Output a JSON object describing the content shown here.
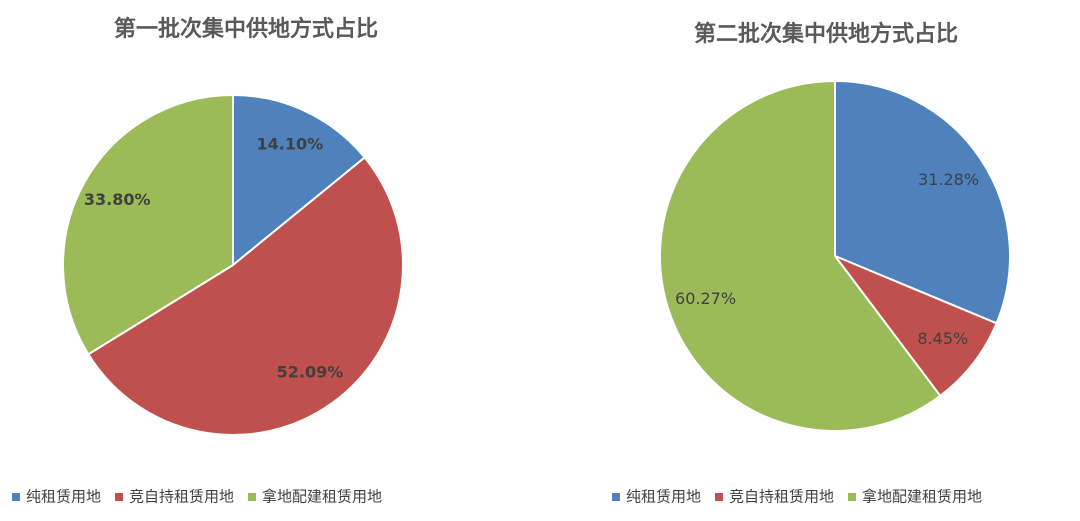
{
  "chart_data": [
    {
      "type": "pie",
      "title": "第一批次集中供地方式占比",
      "categories": [
        "纯租赁用地",
        "竞自持租赁用地",
        "拿地配建租赁用地"
      ],
      "values": [
        14.1,
        52.09,
        33.8
      ],
      "value_labels": [
        "14.10%",
        "52.09%",
        "33.80%"
      ],
      "colors": [
        "#4f81bd",
        "#c0504d",
        "#9bbb59"
      ]
    },
    {
      "type": "pie",
      "title": "第二批次集中供地方式占比",
      "categories": [
        "纯租赁用地",
        "竞自持租赁用地",
        "拿地配建租赁用地"
      ],
      "values": [
        31.28,
        8.45,
        60.27
      ],
      "value_labels": [
        "31.28%",
        "8.45%",
        "60.27%"
      ],
      "colors": [
        "#4f81bd",
        "#c0504d",
        "#9bbb59"
      ]
    }
  ]
}
